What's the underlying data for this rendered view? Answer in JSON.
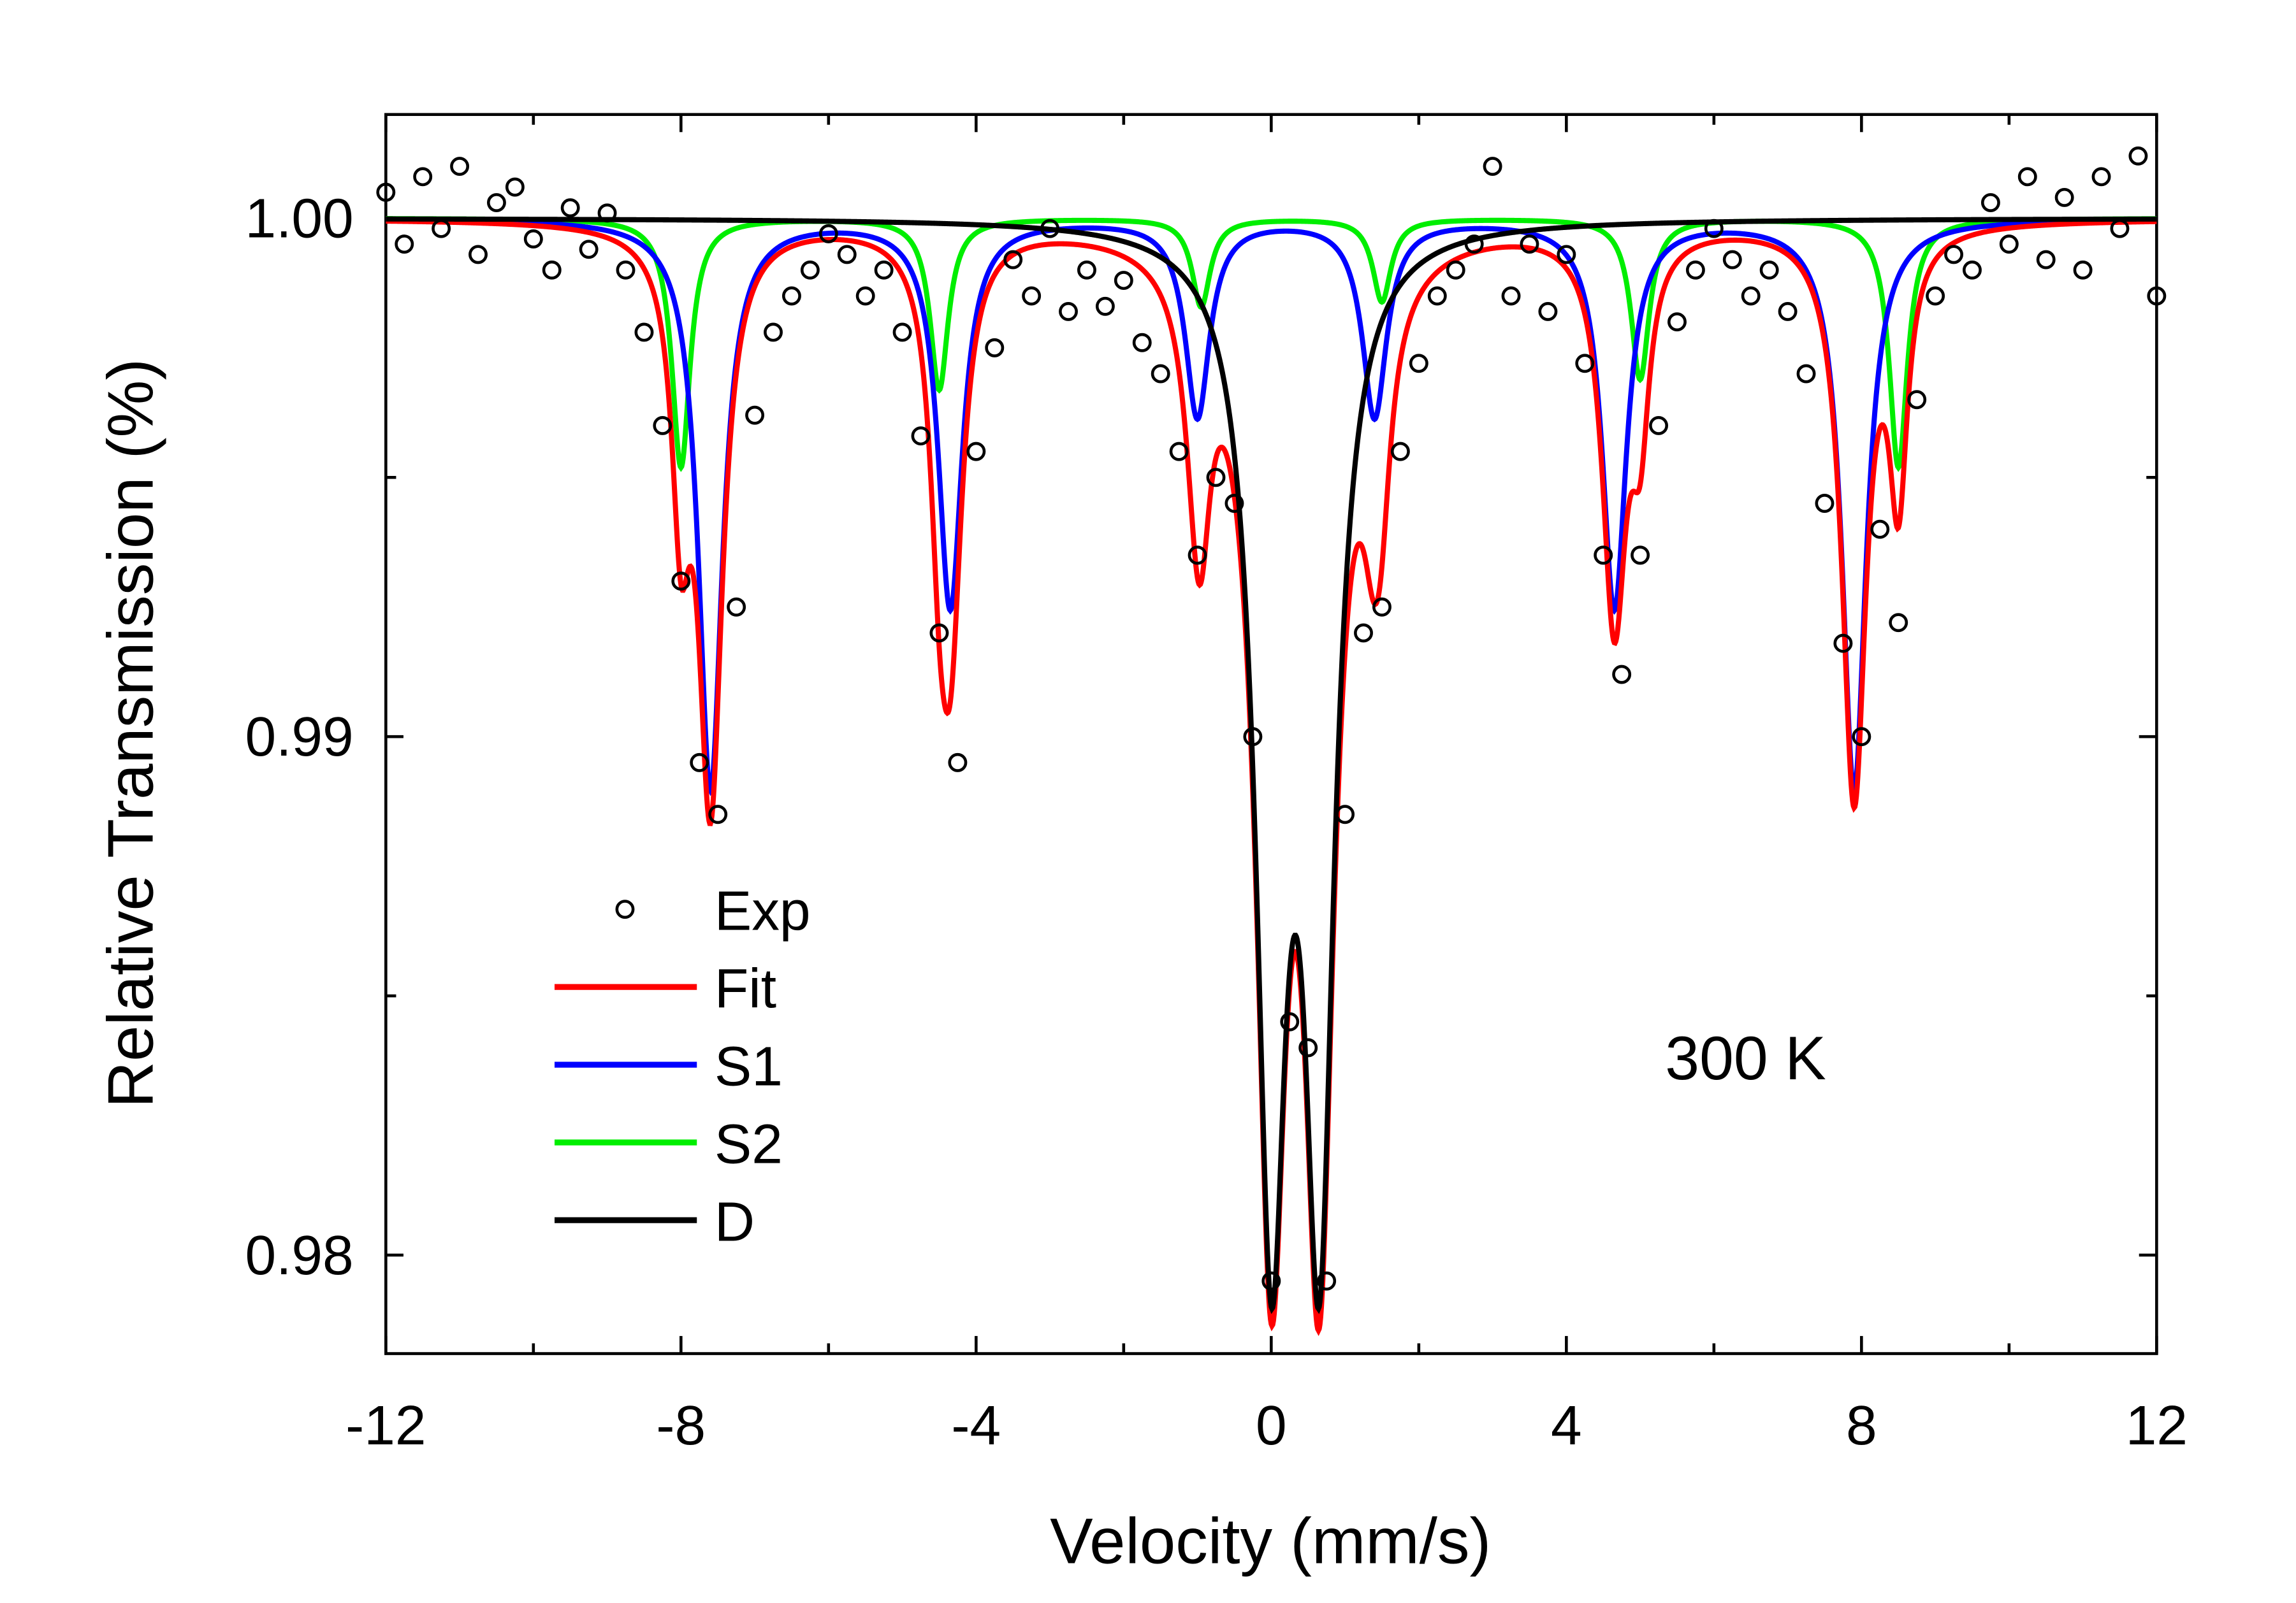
{
  "chart_data": {
    "type": "scatter+line",
    "title": "",
    "xlabel": "Velocity (mm/s)",
    "ylabel": "Relative Transmission (%)",
    "annotation": "300 K",
    "xlim": [
      -12,
      12
    ],
    "ylim": [
      0.9781,
      1.002
    ],
    "xticks": [
      -12,
      -8,
      -4,
      0,
      4,
      8,
      12
    ],
    "xtick_labels": [
      "-12",
      "-8",
      "-4",
      "0",
      "4",
      "8",
      "12"
    ],
    "yticks": [
      0.98,
      0.99,
      1.0
    ],
    "ytick_labels": [
      "0.98",
      "0.99",
      "1.00"
    ],
    "grid": false,
    "legend_position": "bottom-left",
    "legend": [
      {
        "key": "exp",
        "label": "Exp",
        "marker": "open-circle",
        "color": "#000000"
      },
      {
        "key": "fit",
        "label": "Fit",
        "color": "#ff0000"
      },
      {
        "key": "s1",
        "label": "S1",
        "color": "#0000ff"
      },
      {
        "key": "s2",
        "label": "S2",
        "color": "#00ee00"
      },
      {
        "key": "d",
        "label": "D",
        "color": "#000000"
      }
    ],
    "components": {
      "s1": {
        "lines": [
          -7.6,
          -4.35,
          -1.0,
          1.4,
          4.65,
          7.9
        ],
        "depths": [
          0.011,
          0.0075,
          0.0038,
          0.0038,
          0.0075,
          0.011
        ],
        "hwhm": 0.2
      },
      "s2": {
        "lines": [
          -8.0,
          -4.5,
          -0.95,
          1.5,
          5.0,
          8.5
        ],
        "depths": [
          0.0048,
          0.0033,
          0.0017,
          0.0016,
          0.0031,
          0.0048
        ],
        "hwhm": 0.15
      },
      "d": {
        "lines": [
          0.0,
          0.65
        ],
        "depths": [
          0.0186,
          0.0186
        ],
        "hwhm": 0.25
      }
    },
    "exp": {
      "x": [
        -12,
        -11.75,
        -11.5,
        -11.25,
        -11,
        -10.75,
        -10.5,
        -10.25,
        -10,
        -9.75,
        -9.5,
        -9.25,
        -9,
        -8.75,
        -8.5,
        -8.25,
        -8,
        -7.75,
        -7.5,
        -7.25,
        -7,
        -6.75,
        -6.5,
        -6.25,
        -6,
        -5.75,
        -5.5,
        -5.25,
        -5,
        -4.75,
        -4.5,
        -4.25,
        -4,
        -3.75,
        -3.5,
        -3.25,
        -3,
        -2.75,
        -2.5,
        -2.25,
        -2,
        -1.75,
        -1.5,
        -1.25,
        -1,
        -0.75,
        -0.5,
        -0.25,
        0,
        0.25,
        0.5,
        0.75,
        1,
        1.25,
        1.5,
        1.75,
        2,
        2.25,
        2.5,
        2.75,
        3,
        3.25,
        3.5,
        3.75,
        4,
        4.25,
        4.5,
        4.75,
        5,
        5.25,
        5.5,
        5.75,
        6,
        6.25,
        6.5,
        6.75,
        7,
        7.25,
        7.5,
        7.75,
        8,
        8.25,
        8.5,
        8.75,
        9,
        9.25,
        9.5,
        9.75,
        10,
        10.25,
        10.5,
        10.75,
        11,
        11.25,
        11.5,
        11.75,
        12
      ],
      "y": [
        1.0005,
        0.9995,
        1.0008,
        0.9998,
        1.001,
        0.9993,
        1.0003,
        1.0006,
        0.9996,
        0.999,
        1.0002,
        0.9994,
        1.0001,
        0.999,
        0.9978,
        0.996,
        0.993,
        0.9895,
        0.9885,
        0.9925,
        0.9962,
        0.9978,
        0.9985,
        0.999,
        0.9997,
        0.9993,
        0.9985,
        0.999,
        0.9978,
        0.9958,
        0.992,
        0.9895,
        0.9955,
        0.9975,
        0.9992,
        0.9985,
        0.9998,
        0.9982,
        0.999,
        0.9983,
        0.9988,
        0.9976,
        0.997,
        0.9955,
        0.9935,
        0.995,
        0.9945,
        0.99,
        0.9795,
        0.9845,
        0.984,
        0.9795,
        0.9885,
        0.992,
        0.9925,
        0.9955,
        0.9972,
        0.9985,
        0.999,
        0.9995,
        1.001,
        0.9985,
        0.9995,
        0.9982,
        0.9993,
        0.9972,
        0.9935,
        0.9912,
        0.9935,
        0.996,
        0.998,
        0.999,
        0.9998,
        0.9992,
        0.9985,
        0.999,
        0.9982,
        0.997,
        0.9945,
        0.9918,
        0.99,
        0.994,
        0.9922,
        0.9965,
        0.9985,
        0.9993,
        0.999,
        1.0003,
        0.9995,
        1.0008,
        0.9992,
        1.0004,
        0.999,
        1.0008,
        0.9998,
        1.0012,
        0.9985
      ]
    }
  }
}
